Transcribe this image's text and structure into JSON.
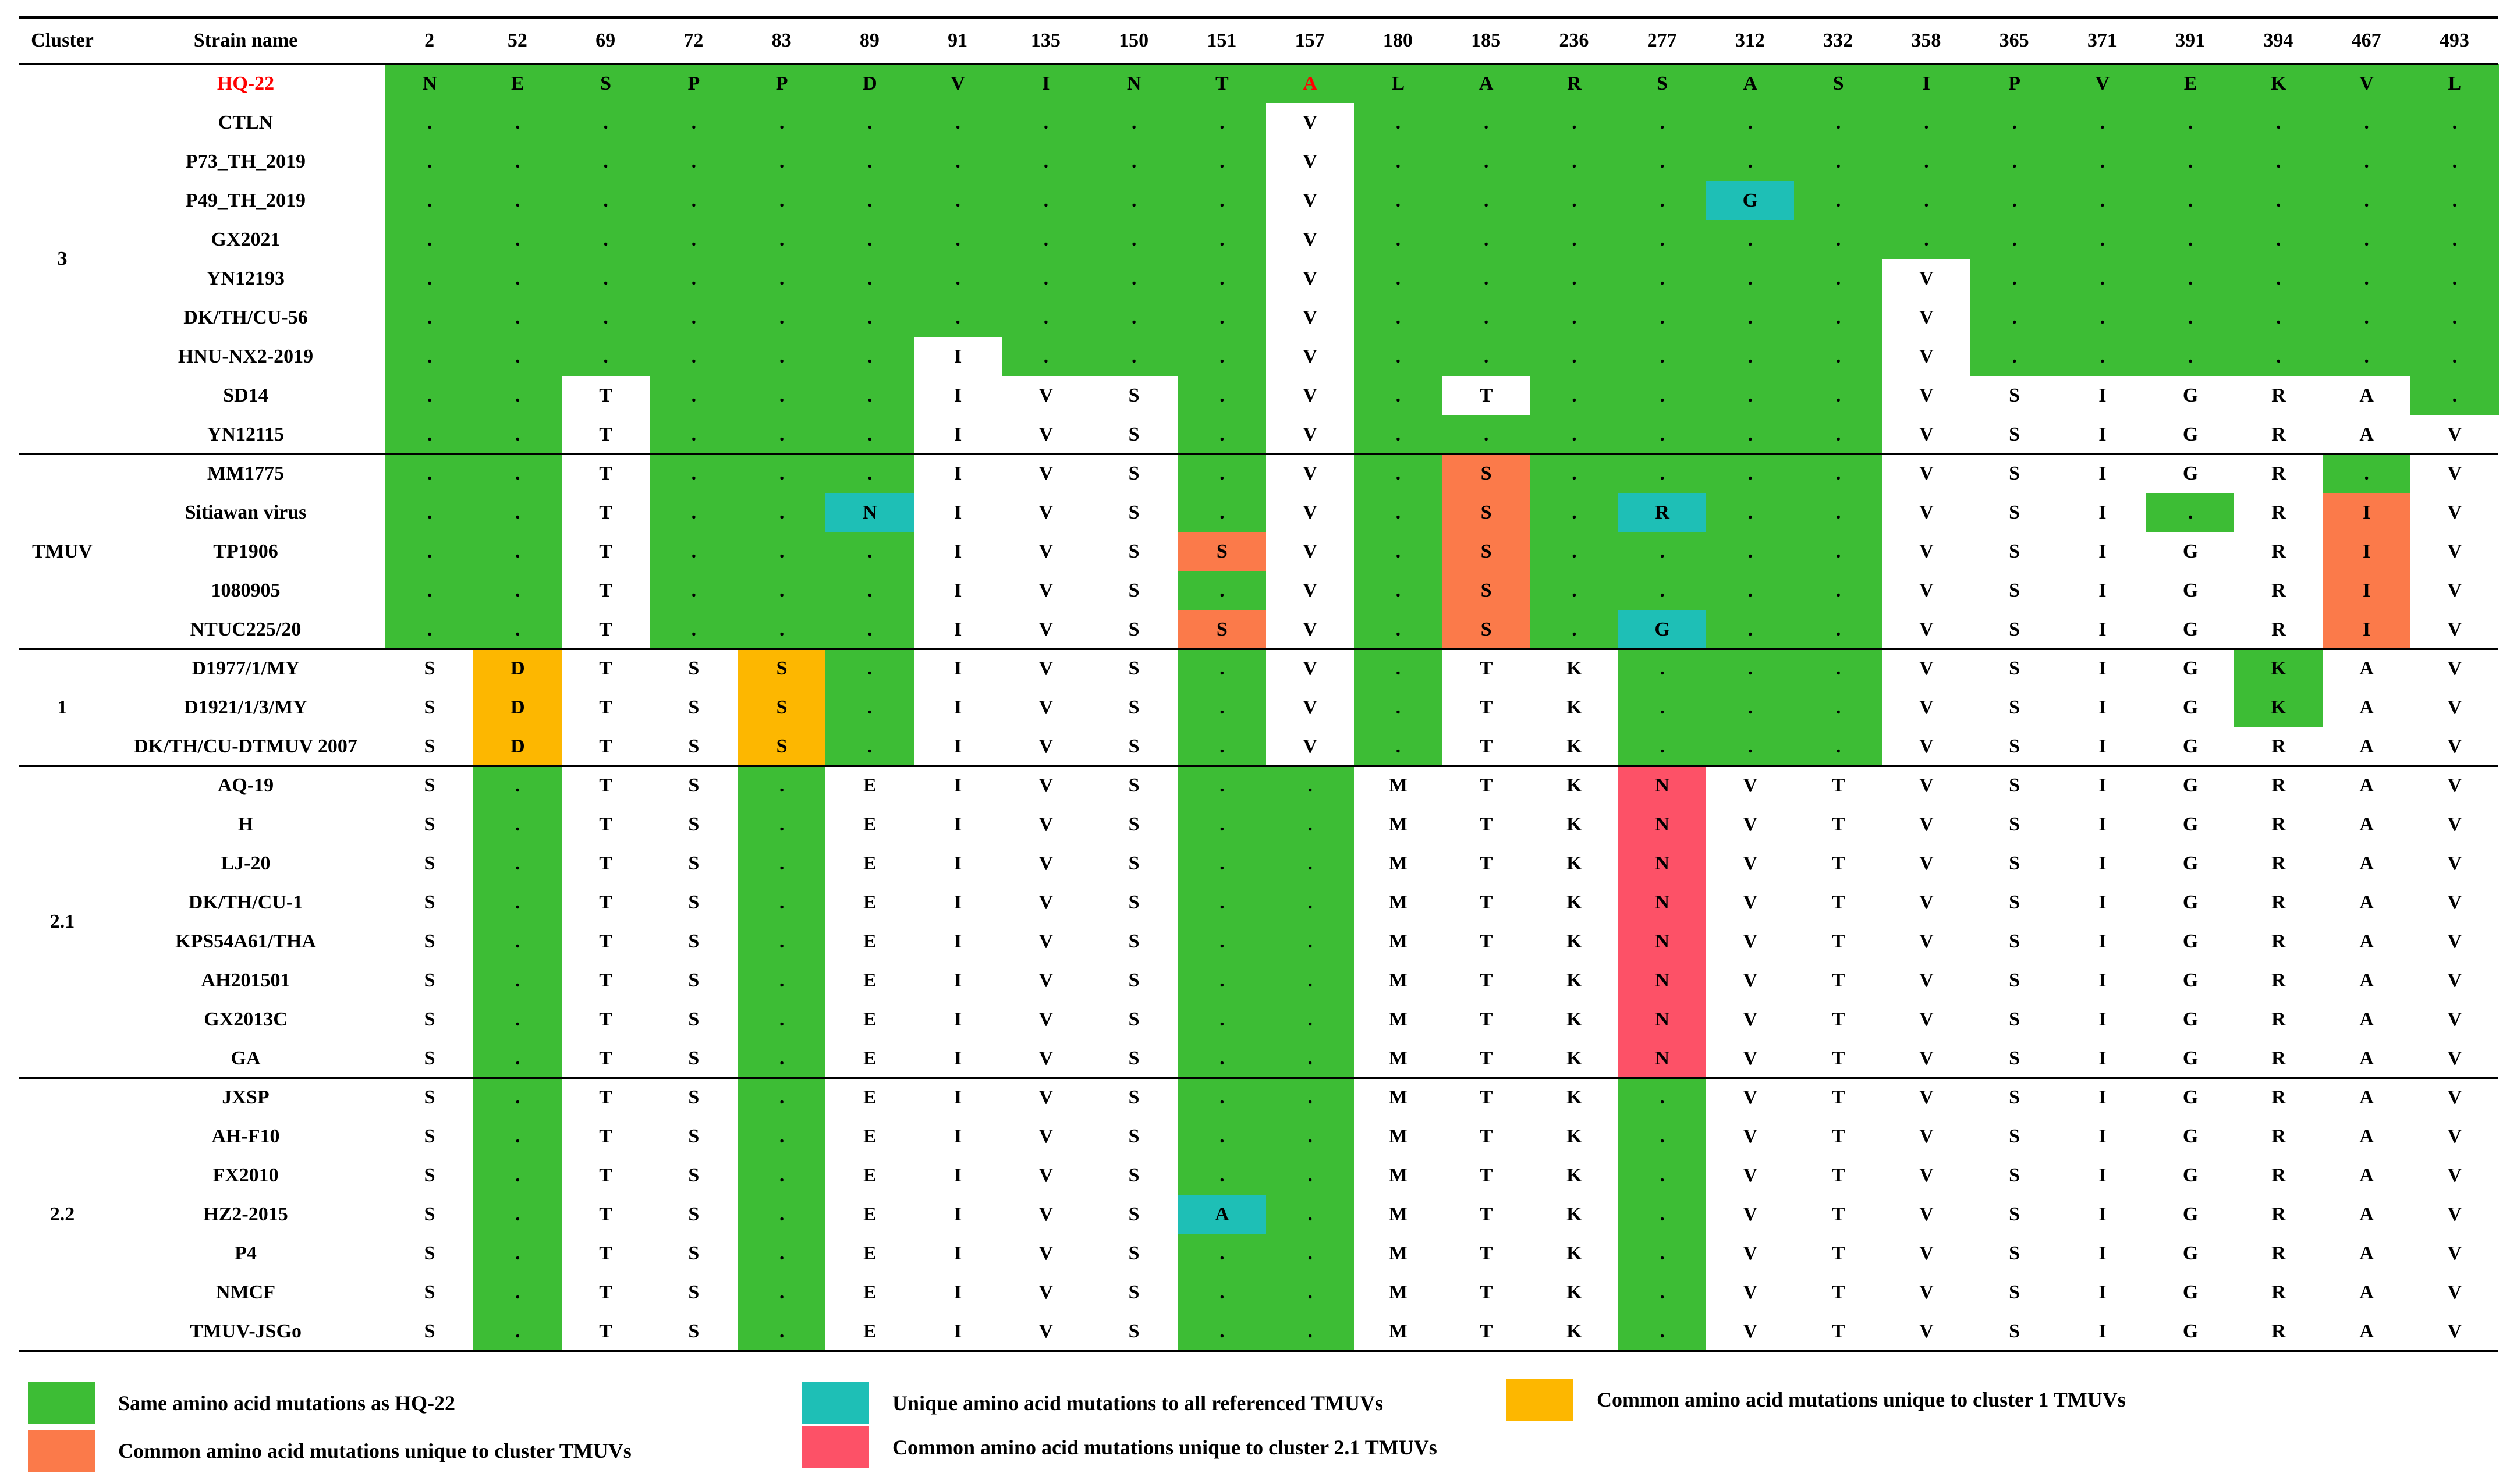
{
  "colors": {
    "G": "#3dbd35",
    "C": "#1ebfb6",
    "Y": "#fdb700",
    "O": "#fb7a4a",
    "P": "#fd5167",
    "W": "#ffffff",
    "red_text": "#ff0000"
  },
  "header": {
    "cluster": "Cluster",
    "strain": "Strain name",
    "positions": [
      "2",
      "52",
      "69",
      "72",
      "83",
      "89",
      "91",
      "135",
      "150",
      "151",
      "157",
      "180",
      "185",
      "236",
      "277",
      "312",
      "332",
      "358",
      "365",
      "371",
      "391",
      "394",
      "467",
      "493"
    ]
  },
  "rows": [
    {
      "strain": "HQ-22",
      "aa": [
        "N",
        "E",
        "S",
        "P",
        "P",
        "D",
        "V",
        "I",
        "N",
        "T",
        "A",
        "L",
        "A",
        "R",
        "S",
        "A",
        "S",
        "I",
        "P",
        "V",
        "E",
        "K",
        "V",
        "L"
      ],
      "color": "GGGGGGGGGGGGGGGGGGGGGGGG"
    },
    {
      "strain": "CTLN",
      "aa": [
        ".",
        ".",
        ".",
        ".",
        ".",
        ".",
        ".",
        ".",
        ".",
        ".",
        "V",
        ".",
        ".",
        ".",
        ".",
        ".",
        ".",
        ".",
        ".",
        ".",
        ".",
        ".",
        ".",
        "."
      ],
      "color": "GGGGGGGGGGWGGGGGGGGGGGGG"
    },
    {
      "strain": "P73_TH_2019",
      "aa": [
        ".",
        ".",
        ".",
        ".",
        ".",
        ".",
        ".",
        ".",
        ".",
        ".",
        "V",
        ".",
        ".",
        ".",
        ".",
        ".",
        ".",
        ".",
        ".",
        ".",
        ".",
        ".",
        ".",
        "."
      ],
      "color": "GGGGGGGGGGWGGGGGGGGGGGGG"
    },
    {
      "strain": "P49_TH_2019",
      "aa": [
        ".",
        ".",
        ".",
        ".",
        ".",
        ".",
        ".",
        ".",
        ".",
        ".",
        "V",
        ".",
        ".",
        ".",
        ".",
        "G",
        ".",
        ".",
        ".",
        ".",
        ".",
        ".",
        ".",
        "."
      ],
      "color": "GGGGGGGGGGWGGGGCGGGGGGGG"
    },
    {
      "strain": "GX2021",
      "aa": [
        ".",
        ".",
        ".",
        ".",
        ".",
        ".",
        ".",
        ".",
        ".",
        ".",
        "V",
        ".",
        ".",
        ".",
        ".",
        ".",
        ".",
        ".",
        ".",
        ".",
        ".",
        ".",
        ".",
        "."
      ],
      "color": "GGGGGGGGGGWGGGGGGGGGGGGG"
    },
    {
      "strain": "YN12193",
      "aa": [
        ".",
        ".",
        ".",
        ".",
        ".",
        ".",
        ".",
        ".",
        ".",
        ".",
        "V",
        ".",
        ".",
        ".",
        ".",
        ".",
        ".",
        "V",
        ".",
        ".",
        ".",
        ".",
        ".",
        "."
      ],
      "color": "GGGGGGGGGGWGGGGGGWGGGGGG"
    },
    {
      "strain": "DK/TH/CU-56",
      "aa": [
        ".",
        ".",
        ".",
        ".",
        ".",
        ".",
        ".",
        ".",
        ".",
        ".",
        "V",
        ".",
        ".",
        ".",
        ".",
        ".",
        ".",
        "V",
        ".",
        ".",
        ".",
        ".",
        ".",
        "."
      ],
      "color": "GGGGGGGGGGWGGGGGGWGGGGGG"
    },
    {
      "strain": "HNU-NX2-2019",
      "aa": [
        ".",
        ".",
        ".",
        ".",
        ".",
        ".",
        "I",
        ".",
        ".",
        ".",
        "V",
        ".",
        ".",
        ".",
        ".",
        ".",
        ".",
        "V",
        ".",
        ".",
        ".",
        ".",
        ".",
        "."
      ],
      "color": "GGGGGGWGGGWGGGGGGWGGGGGG"
    },
    {
      "strain": "SD14",
      "aa": [
        ".",
        ".",
        "T",
        ".",
        ".",
        ".",
        "I",
        "V",
        "S",
        ".",
        "V",
        ".",
        "T",
        ".",
        ".",
        ".",
        ".",
        "V",
        "S",
        "I",
        "G",
        "R",
        "A",
        "."
      ],
      "color": "GGWGGGWWWGWGWGGGGWWWWWWG"
    },
    {
      "strain": "YN12115",
      "aa": [
        ".",
        ".",
        "T",
        ".",
        ".",
        ".",
        "I",
        "V",
        "S",
        ".",
        "V",
        ".",
        ".",
        ".",
        ".",
        ".",
        ".",
        "V",
        "S",
        "I",
        "G",
        "R",
        "A",
        "V"
      ],
      "color": "GGWGGGWWWGWGGGGGGWWWWWWW"
    },
    {
      "strain": "MM1775",
      "aa": [
        ".",
        ".",
        "T",
        ".",
        ".",
        ".",
        "I",
        "V",
        "S",
        ".",
        "V",
        ".",
        "S",
        ".",
        ".",
        ".",
        ".",
        "V",
        "S",
        "I",
        "G",
        "R",
        ".",
        "V"
      ],
      "color": "GGWGGGWWWGWGOGGGGWWWWWGW"
    },
    {
      "strain": "Sitiawan virus",
      "aa": [
        ".",
        ".",
        "T",
        ".",
        ".",
        "N",
        "I",
        "V",
        "S",
        ".",
        "V",
        ".",
        "S",
        ".",
        "R",
        ".",
        ".",
        "V",
        "S",
        "I",
        ".",
        "R",
        "I",
        "V"
      ],
      "color": "GGWGGCWWWGWGOGCGGWWWGWOW"
    },
    {
      "strain": "TP1906",
      "aa": [
        ".",
        ".",
        "T",
        ".",
        ".",
        ".",
        "I",
        "V",
        "S",
        "S",
        "V",
        ".",
        "S",
        ".",
        ".",
        ".",
        ".",
        "V",
        "S",
        "I",
        "G",
        "R",
        "I",
        "V"
      ],
      "color": "GGWGGGWWWOWGOGGGGWWWWWOW"
    },
    {
      "strain": "1080905",
      "aa": [
        ".",
        ".",
        "T",
        ".",
        ".",
        ".",
        "I",
        "V",
        "S",
        ".",
        "V",
        ".",
        "S",
        ".",
        ".",
        ".",
        ".",
        "V",
        "S",
        "I",
        "G",
        "R",
        "I",
        "V"
      ],
      "color": "GGWGGGWWWGWGOGGGGWWWWWOW"
    },
    {
      "strain": "NTUC225/20",
      "aa": [
        ".",
        ".",
        "T",
        ".",
        ".",
        ".",
        "I",
        "V",
        "S",
        "S",
        "V",
        ".",
        "S",
        ".",
        "G",
        ".",
        ".",
        "V",
        "S",
        "I",
        "G",
        "R",
        "I",
        "V"
      ],
      "color": "GGWGGGWWWOWGOGCGGWWWWWOW"
    },
    {
      "strain": "D1977/1/MY",
      "aa": [
        "S",
        "D",
        "T",
        "S",
        "S",
        ".",
        "I",
        "V",
        "S",
        ".",
        "V",
        ".",
        "T",
        "K",
        ".",
        ".",
        ".",
        "V",
        "S",
        "I",
        "G",
        "K",
        "A",
        "V"
      ],
      "color": "WYWWYGWWWGWGWWGGGWWWWGWW"
    },
    {
      "strain": "D1921/1/3/MY",
      "aa": [
        "S",
        "D",
        "T",
        "S",
        "S",
        ".",
        "I",
        "V",
        "S",
        ".",
        "V",
        ".",
        "T",
        "K",
        ".",
        ".",
        ".",
        "V",
        "S",
        "I",
        "G",
        "K",
        "A",
        "V"
      ],
      "color": "WYWWYGWWWGWGWWGGGWWWWGWW"
    },
    {
      "strain": "DK/TH/CU-DTMUV 2007",
      "aa": [
        "S",
        "D",
        "T",
        "S",
        "S",
        ".",
        "I",
        "V",
        "S",
        ".",
        "V",
        ".",
        "T",
        "K",
        ".",
        ".",
        ".",
        "V",
        "S",
        "I",
        "G",
        "R",
        "A",
        "V"
      ],
      "color": "WYWWYGWWWGWGWWGGGWWWWWWW"
    },
    {
      "strain": "AQ-19",
      "aa": [
        "S",
        ".",
        "T",
        "S",
        ".",
        "E",
        "I",
        "V",
        "S",
        ".",
        ".",
        "M",
        "T",
        "K",
        "N",
        "V",
        "T",
        "V",
        "S",
        "I",
        "G",
        "R",
        "A",
        "V"
      ],
      "color": "WGWWGWWWWGGWWWPWWWWWWWWW"
    },
    {
      "strain": "H",
      "aa": [
        "S",
        ".",
        "T",
        "S",
        ".",
        "E",
        "I",
        "V",
        "S",
        ".",
        ".",
        "M",
        "T",
        "K",
        "N",
        "V",
        "T",
        "V",
        "S",
        "I",
        "G",
        "R",
        "A",
        "V"
      ],
      "color": "WGWWGWWWWGGWWWPWWWWWWWWW"
    },
    {
      "strain": "LJ-20",
      "aa": [
        "S",
        ".",
        "T",
        "S",
        ".",
        "E",
        "I",
        "V",
        "S",
        ".",
        ".",
        "M",
        "T",
        "K",
        "N",
        "V",
        "T",
        "V",
        "S",
        "I",
        "G",
        "R",
        "A",
        "V"
      ],
      "color": "WGWWGWWWWGGWWWPWWWWWWWWW"
    },
    {
      "strain": "DK/TH/CU-1",
      "aa": [
        "S",
        ".",
        "T",
        "S",
        ".",
        "E",
        "I",
        "V",
        "S",
        ".",
        ".",
        "M",
        "T",
        "K",
        "N",
        "V",
        "T",
        "V",
        "S",
        "I",
        "G",
        "R",
        "A",
        "V"
      ],
      "color": "WGWWGWWWWGGWWWPWWWWWWWWW"
    },
    {
      "strain": "KPS54A61/THA",
      "aa": [
        "S",
        ".",
        "T",
        "S",
        ".",
        "E",
        "I",
        "V",
        "S",
        ".",
        ".",
        "M",
        "T",
        "K",
        "N",
        "V",
        "T",
        "V",
        "S",
        "I",
        "G",
        "R",
        "A",
        "V"
      ],
      "color": "WGWWGWWWWGGWWWPWWWWWWWWW"
    },
    {
      "strain": "AH201501",
      "aa": [
        "S",
        ".",
        "T",
        "S",
        ".",
        "E",
        "I",
        "V",
        "S",
        ".",
        ".",
        "M",
        "T",
        "K",
        "N",
        "V",
        "T",
        "V",
        "S",
        "I",
        "G",
        "R",
        "A",
        "V"
      ],
      "color": "WGWWGWWWWGGWWWPWWWWWWWWW"
    },
    {
      "strain": "GX2013C",
      "aa": [
        "S",
        ".",
        "T",
        "S",
        ".",
        "E",
        "I",
        "V",
        "S",
        ".",
        ".",
        "M",
        "T",
        "K",
        "N",
        "V",
        "T",
        "V",
        "S",
        "I",
        "G",
        "R",
        "A",
        "V"
      ],
      "color": "WGWWGWWWWGGWWWPWWWWWWWWW"
    },
    {
      "strain": "GA",
      "aa": [
        "S",
        ".",
        "T",
        "S",
        ".",
        "E",
        "I",
        "V",
        "S",
        ".",
        ".",
        "M",
        "T",
        "K",
        "N",
        "V",
        "T",
        "V",
        "S",
        "I",
        "G",
        "R",
        "A",
        "V"
      ],
      "color": "WGWWGWWWWGGWWWPWWWWWWWWW"
    },
    {
      "strain": "JXSP",
      "aa": [
        "S",
        ".",
        "T",
        "S",
        ".",
        "E",
        "I",
        "V",
        "S",
        ".",
        ".",
        "M",
        "T",
        "K",
        ".",
        "V",
        "T",
        "V",
        "S",
        "I",
        "G",
        "R",
        "A",
        "V"
      ],
      "color": "WGWWGWWWWGGWWWGWWWWWWWWW"
    },
    {
      "strain": "AH-F10",
      "aa": [
        "S",
        ".",
        "T",
        "S",
        ".",
        "E",
        "I",
        "V",
        "S",
        ".",
        ".",
        "M",
        "T",
        "K",
        ".",
        "V",
        "T",
        "V",
        "S",
        "I",
        "G",
        "R",
        "A",
        "V"
      ],
      "color": "WGWWGWWWWGGWWWGWWWWWWWWW"
    },
    {
      "strain": "FX2010",
      "aa": [
        "S",
        ".",
        "T",
        "S",
        ".",
        "E",
        "I",
        "V",
        "S",
        ".",
        ".",
        "M",
        "T",
        "K",
        ".",
        "V",
        "T",
        "V",
        "S",
        "I",
        "G",
        "R",
        "A",
        "V"
      ],
      "color": "WGWWGWWWWGGWWWGWWWWWWWWW"
    },
    {
      "strain": "HZ2-2015",
      "aa": [
        "S",
        ".",
        "T",
        "S",
        ".",
        "E",
        "I",
        "V",
        "S",
        "A",
        ".",
        "M",
        "T",
        "K",
        ".",
        "V",
        "T",
        "V",
        "S",
        "I",
        "G",
        "R",
        "A",
        "V"
      ],
      "color": "WGWWGWWWWCGWWWGWWWWWWWWW"
    },
    {
      "strain": "P4",
      "aa": [
        "S",
        ".",
        "T",
        "S",
        ".",
        "E",
        "I",
        "V",
        "S",
        ".",
        ".",
        "M",
        "T",
        "K",
        ".",
        "V",
        "T",
        "V",
        "S",
        "I",
        "G",
        "R",
        "A",
        "V"
      ],
      "color": "WGWWGWWWWGGWWWGWWWWWWWWW"
    },
    {
      "strain": "NMCF",
      "aa": [
        "S",
        ".",
        "T",
        "S",
        ".",
        "E",
        "I",
        "V",
        "S",
        ".",
        ".",
        "M",
        "T",
        "K",
        ".",
        "V",
        "T",
        "V",
        "S",
        "I",
        "G",
        "R",
        "A",
        "V"
      ],
      "color": "WGWWGWWWWGGWWWGWWWWWWWWW"
    },
    {
      "strain": "TMUV-JSGo",
      "aa": [
        "S",
        ".",
        "T",
        "S",
        ".",
        "E",
        "I",
        "V",
        "S",
        ".",
        ".",
        "M",
        "T",
        "K",
        ".",
        "V",
        "T",
        "V",
        "S",
        "I",
        "G",
        "R",
        "A",
        "V"
      ],
      "color": "WGWWGWWWWGGWWWGWWWWWWWWW"
    }
  ],
  "clusters": [
    {
      "label": "3",
      "start": 0,
      "end": 9
    },
    {
      "label": "TMUV",
      "start": 10,
      "end": 14
    },
    {
      "label": "1",
      "start": 15,
      "end": 17
    },
    {
      "label": "2.1",
      "start": 18,
      "end": 25
    },
    {
      "label": "2.2",
      "start": 26,
      "end": 32
    }
  ],
  "legend": [
    {
      "key": "G",
      "text": "Same amino acid mutations  as HQ-22"
    },
    {
      "key": "C",
      "text": "Unique amino acid mutations to all referenced TMUVs"
    },
    {
      "key": "Y",
      "text": "Common amino acid mutations unique to cluster 1 TMUVs"
    },
    {
      "key": "O",
      "text": "Common amino acid mutations unique to cluster  TMUVs"
    },
    {
      "key": "P",
      "text": "Common amino acid mutations unique to cluster 2.1 TMUVs"
    }
  ]
}
